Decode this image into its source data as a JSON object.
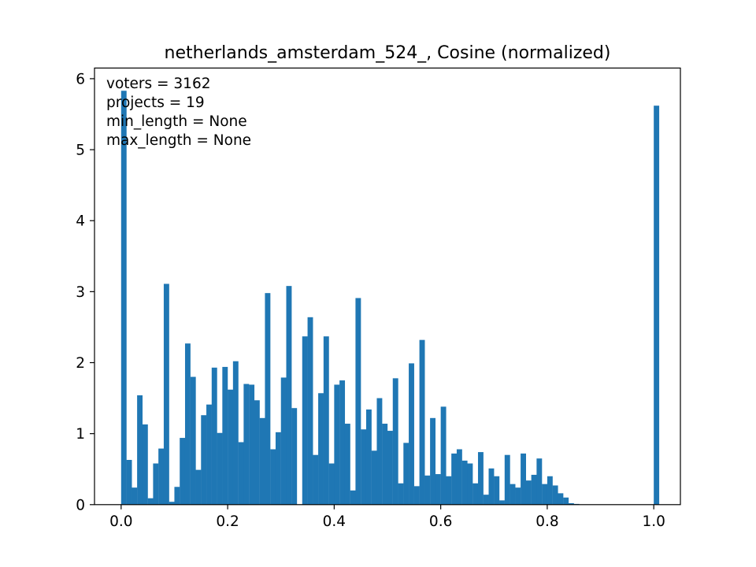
{
  "chart_data": {
    "type": "bar",
    "title": "netherlands_amsterdam_524_, Cosine (normalized)",
    "xlabel": "",
    "ylabel": "",
    "xlim": [
      -0.05,
      1.05
    ],
    "ylim": [
      0,
      6.15
    ],
    "xticks": [
      0.0,
      0.2,
      0.4,
      0.6,
      0.8,
      1.0
    ],
    "xtick_labels": [
      "0.0",
      "0.2",
      "0.4",
      "0.6",
      "0.8",
      "1.0"
    ],
    "yticks": [
      0,
      1,
      2,
      3,
      4,
      5,
      6
    ],
    "ytick_labels": [
      "0",
      "1",
      "2",
      "3",
      "4",
      "5",
      "6"
    ],
    "grid": false,
    "legend": null,
    "color": "#1f77b4",
    "annotations": [
      "voters = 3162",
      "projects = 19",
      "min_length = None",
      "max_length = None"
    ],
    "bin_start": 0.0,
    "bin_width": 0.01,
    "values": [
      5.83,
      0.63,
      0.24,
      1.54,
      1.13,
      0.09,
      0.58,
      0.79,
      3.11,
      0.04,
      0.25,
      0.94,
      2.27,
      1.8,
      0.49,
      1.26,
      1.41,
      1.93,
      1.01,
      1.94,
      1.62,
      2.02,
      0.88,
      1.7,
      1.69,
      1.47,
      1.22,
      2.98,
      0.78,
      1.02,
      1.79,
      3.08,
      1.36,
      0.0,
      2.37,
      2.64,
      0.7,
      1.57,
      2.37,
      0.58,
      1.69,
      1.75,
      1.14,
      0.2,
      2.91,
      1.06,
      1.34,
      0.76,
      1.5,
      1.14,
      1.04,
      1.78,
      0.3,
      0.87,
      1.99,
      0.26,
      2.32,
      0.41,
      1.22,
      0.43,
      1.38,
      0.4,
      0.72,
      0.78,
      0.62,
      0.58,
      0.3,
      0.74,
      0.14,
      0.51,
      0.4,
      0.06,
      0.7,
      0.29,
      0.24,
      0.72,
      0.34,
      0.42,
      0.65,
      0.29,
      0.4,
      0.27,
      0.16,
      0.1,
      0.02,
      0.01,
      0.0,
      0.0,
      0.0,
      0.0,
      0.0,
      0.0,
      0.0,
      0.0,
      0.0,
      0.0,
      0.0,
      0.0,
      0.0,
      0.0,
      5.62
    ]
  }
}
